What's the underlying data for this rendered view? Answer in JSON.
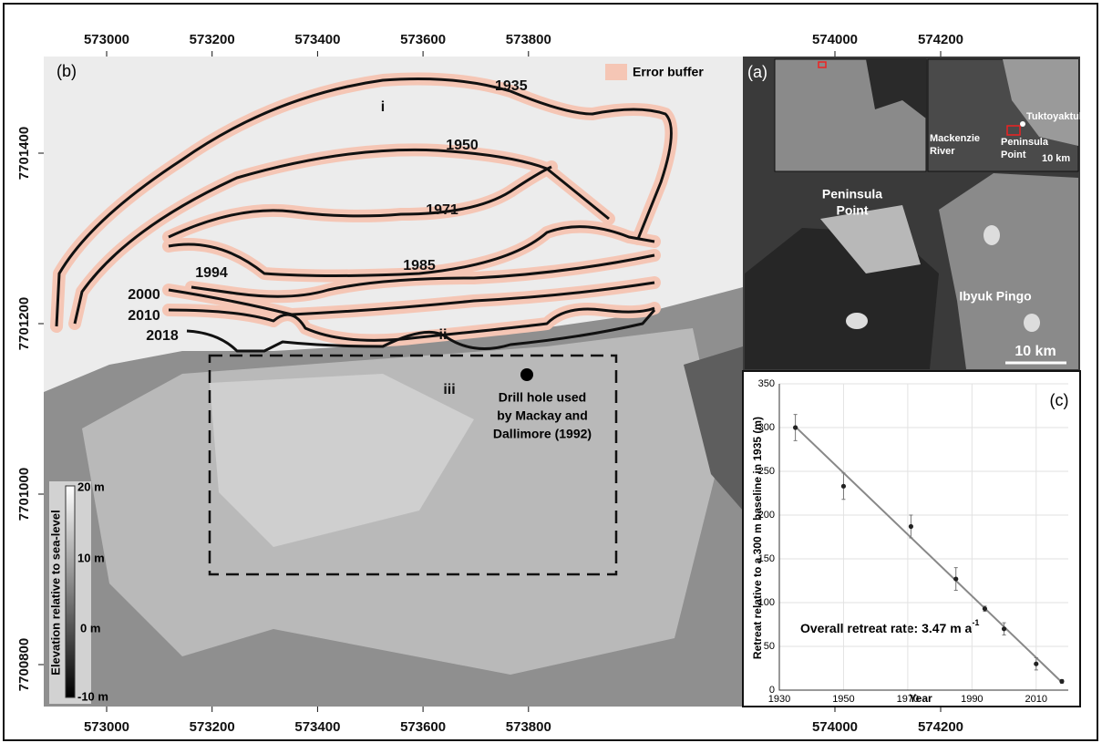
{
  "panel_b": {
    "label": "(b)",
    "legend": "Error buffer",
    "buffer_color": "#f5c6b5",
    "shorelines": [
      "1935",
      "1950",
      "1971",
      "1985",
      "1994",
      "2000",
      "2010",
      "2018"
    ],
    "annotations": [
      "i",
      "ii",
      "iii"
    ],
    "drill_hole": [
      "Drill hole used",
      "by Mackay and",
      "Dallimore (1992)"
    ],
    "colorbar": {
      "title": "Elevation relative to sea-level",
      "labels": [
        "20 m",
        "10 m",
        "0 m",
        "-10 m"
      ]
    },
    "xticks": [
      573000,
      573200,
      573400,
      573600,
      573800
    ],
    "yticks": [
      7700800,
      7701000,
      7701200,
      7701400
    ]
  },
  "panel_a": {
    "label": "(a)",
    "xticks": [
      574000,
      574200
    ],
    "labels": [
      "Tuktoyaktuk",
      "Mackenzie",
      "River",
      "Peninsula",
      "Point",
      "10 km"
    ],
    "main_labels": [
      "Peninsula",
      "Point",
      "Ibyuk Pingo",
      "10 km"
    ]
  },
  "chart_data": {
    "type": "scatter",
    "title": "(c)",
    "x_label": "Year",
    "y_label": "Retreat relative to a 300 m baseline in 1935 (m)",
    "annotation": "Overall retreat rate: 3.47 m a",
    "annotation_sup": "-1",
    "x": [
      1935,
      1950,
      1971,
      1985,
      1994,
      2000,
      2010,
      2018
    ],
    "values": [
      300,
      233,
      187,
      127,
      93,
      70,
      30,
      10
    ],
    "errors": [
      15,
      15,
      13,
      13,
      3,
      7,
      7,
      2
    ],
    "fit": {
      "x": [
        1935,
        2018
      ],
      "values": [
        301,
        9
      ]
    },
    "color": "#222222",
    "fit_color": "#888888",
    "xlim": [
      1930,
      2020
    ],
    "ylim": [
      0,
      350
    ],
    "xticks": [
      1930,
      1950,
      1970,
      1990,
      2010
    ],
    "yticks": [
      0,
      50,
      100,
      150,
      200,
      250,
      300,
      350
    ],
    "grid": true
  }
}
